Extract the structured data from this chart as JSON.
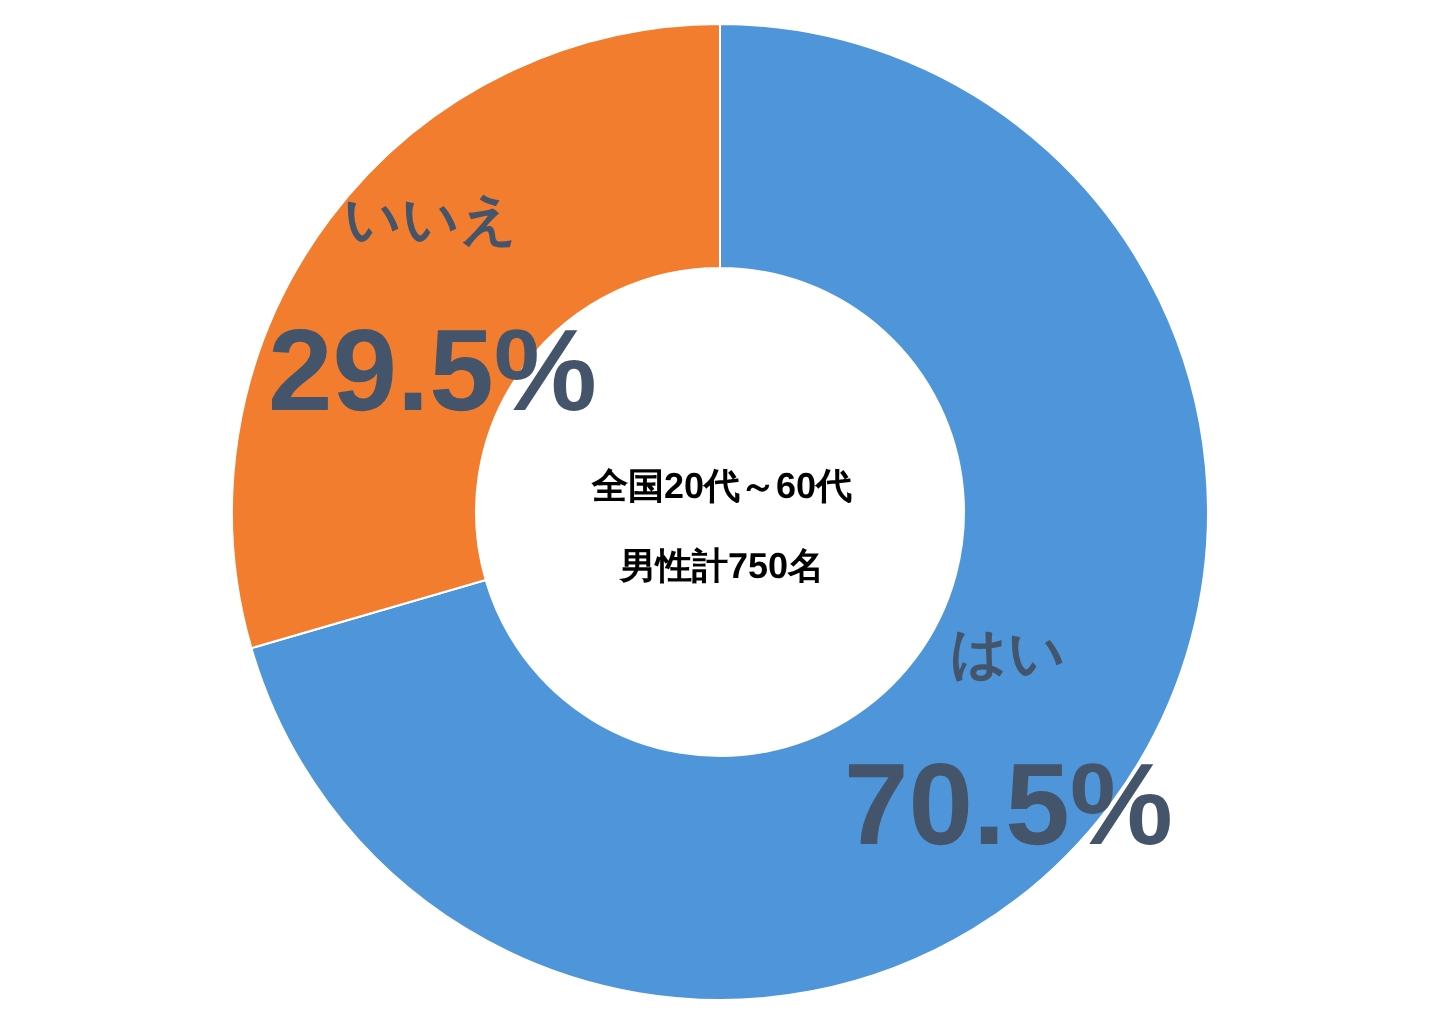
{
  "chart_data": {
    "type": "donut",
    "categories": [
      "はい",
      "いいえ"
    ],
    "values": [
      70.5,
      29.5
    ],
    "colors": [
      "#4e95d9",
      "#f27d2f"
    ],
    "value_labels": [
      "70.5%",
      "29.5%"
    ],
    "annotations": [
      "全国20代～60代",
      "男性計750名"
    ]
  }
}
